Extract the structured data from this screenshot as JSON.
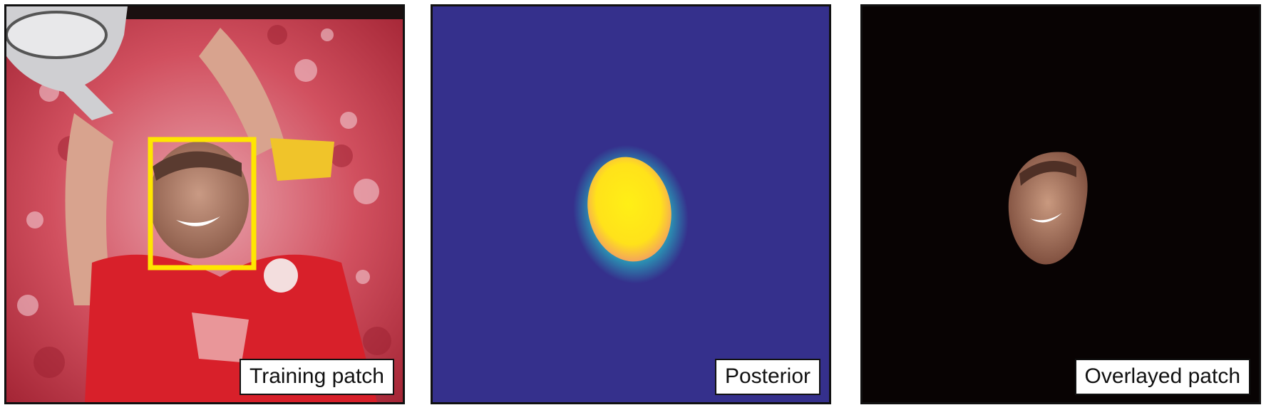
{
  "panels": [
    {
      "id": "training",
      "label": "Training patch",
      "description_colors": {
        "background": "#c23b4a",
        "box": "#ffe600"
      }
    },
    {
      "id": "posterior",
      "label": "Posterior",
      "description_colors": {
        "background": "#35308c",
        "high": "#ffec1a",
        "mid": "#f2a65a",
        "edge": "#2aa6a6"
      }
    },
    {
      "id": "overlay",
      "label": "Overlayed patch",
      "description_colors": {
        "background": "#080303",
        "skin": "#b77b62"
      }
    }
  ]
}
